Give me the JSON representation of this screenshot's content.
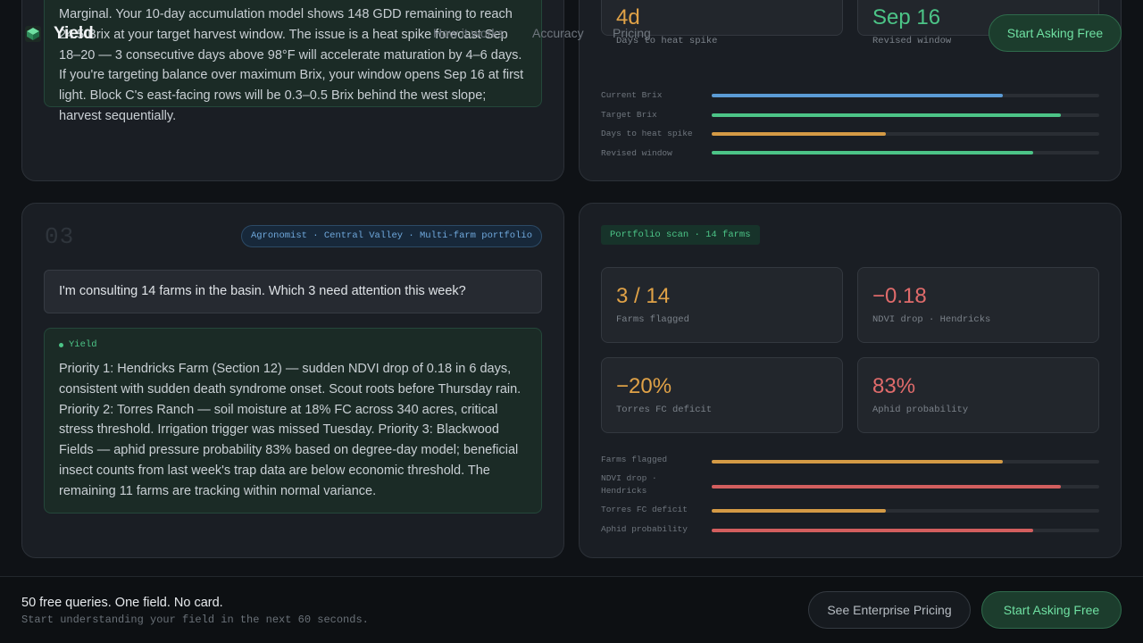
{
  "header": {
    "logo_text": "Yield",
    "nav": [
      "How it works",
      "Accuracy",
      "Pricing"
    ],
    "cta_label": "Start Asking Free"
  },
  "card2": {
    "answer_text": "Marginal. Your 10-day accumulation model shows 148 GDD remaining to reach 24.5 Brix at your target harvest window. The issue is a heat spike forecast Sep 18–20 — 3 consecutive days above 98°F will accelerate maturation by 4–6 days. If you're targeting balance over maximum Brix, your window opens Sep 16 at first light. Block C's east-facing rows will be 0.3–0.5 Brix behind the west slope; harvest sequentially.",
    "metrics": [
      {
        "value": "4d",
        "label": "Days to heat spike",
        "color": "#e0a247"
      },
      {
        "value": "Sep 16",
        "label": "Revised window",
        "color": "#4cc487"
      }
    ],
    "bars": [
      {
        "label": "Current Brix",
        "percent": 75,
        "color": "#5b9bd5"
      },
      {
        "label": "Target Brix",
        "percent": 90,
        "color": "#4cc487"
      },
      {
        "label": "Days to heat spike",
        "percent": 45,
        "color": "#d49a45"
      },
      {
        "label": "Revised window",
        "percent": 83,
        "color": "#4cc487"
      }
    ]
  },
  "card3": {
    "number": "03",
    "tag": "Agronomist · Central Valley · Multi-farm portfolio",
    "question": "I'm consulting 14 farms in the basin. Which 3 need attention this week?",
    "answer_label": "Yield",
    "answer_text": "Priority 1: Hendricks Farm (Section 12) — sudden NDVI drop of 0.18 in 6 days, consistent with sudden death syndrome onset. Scout roots before Thursday rain. Priority 2: Torres Ranch — soil moisture at 18% FC across 340 acres, critical stress threshold. Irrigation trigger was missed Tuesday. Priority 3: Blackwood Fields — aphid pressure probability 83% based on degree-day model; beneficial insect counts from last week's trap data are below economic threshold. The remaining 11 farms are tracking within normal variance.",
    "scan_badge": "Portfolio scan · 14 farms",
    "metrics": [
      {
        "value": "3 / 14",
        "label": "Farms flagged",
        "color": "#e0a247"
      },
      {
        "value": "−0.18",
        "label": "NDVI drop · Hendricks",
        "color": "#e06b6b"
      },
      {
        "value": "−20%",
        "label": "Torres FC deficit",
        "color": "#e0a247"
      },
      {
        "value": "83%",
        "label": "Aphid probability",
        "color": "#e06b6b"
      }
    ],
    "bars": [
      {
        "label": "Farms flagged",
        "percent": 75,
        "color": "#d49a45"
      },
      {
        "label": "NDVI drop · Hendricks",
        "percent": 90,
        "color": "#d25e5e"
      },
      {
        "label": "Torres FC deficit",
        "percent": 45,
        "color": "#d49a45"
      },
      {
        "label": "Aphid probability",
        "percent": 83,
        "color": "#d25e5e"
      }
    ]
  },
  "footer": {
    "title": "50 free queries. One field. No card.",
    "subtitle": "Start understanding your field in the next 60 seconds.",
    "secondary_label": "See Enterprise Pricing",
    "primary_label": "Start Asking Free"
  }
}
